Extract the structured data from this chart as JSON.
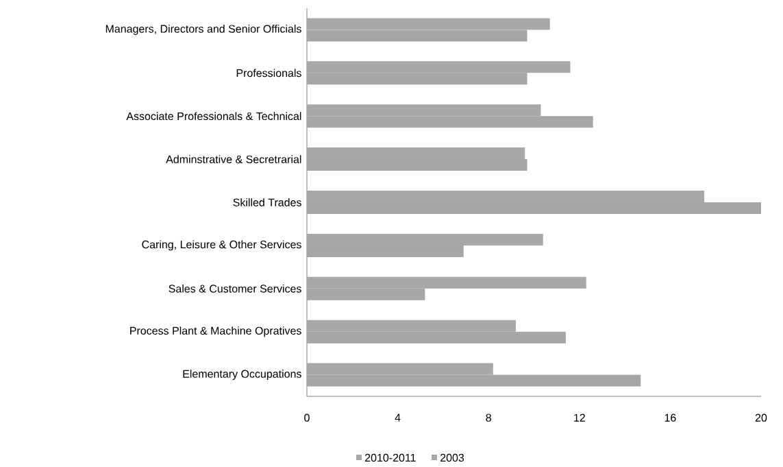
{
  "chart_data": {
    "type": "bar",
    "orientation": "horizontal",
    "categories": [
      "Managers, Directors and Senior Officials",
      "Professionals",
      "Associate Professionals & Technical",
      "Adminstrative & Secretrarial",
      "Skilled Trades",
      "Caring, Leisure & Other Services",
      "Sales & Customer Services",
      "Process Plant & Machine Opratives",
      "Elementary Occupations"
    ],
    "series": [
      {
        "name": "2010-2011",
        "color": "#a8a8a8",
        "values": [
          10.7,
          11.6,
          10.3,
          9.6,
          17.5,
          10.4,
          12.3,
          9.2,
          8.2
        ]
      },
      {
        "name": "2003",
        "color": "#a6a6a6",
        "values": [
          9.7,
          9.7,
          12.6,
          9.7,
          20,
          6.9,
          5.2,
          11.4,
          14.7
        ]
      }
    ],
    "xlim": [
      0,
      20
    ],
    "xticks": [
      0,
      4,
      8,
      12,
      16,
      20
    ],
    "grid": false,
    "legend": "bottom"
  }
}
